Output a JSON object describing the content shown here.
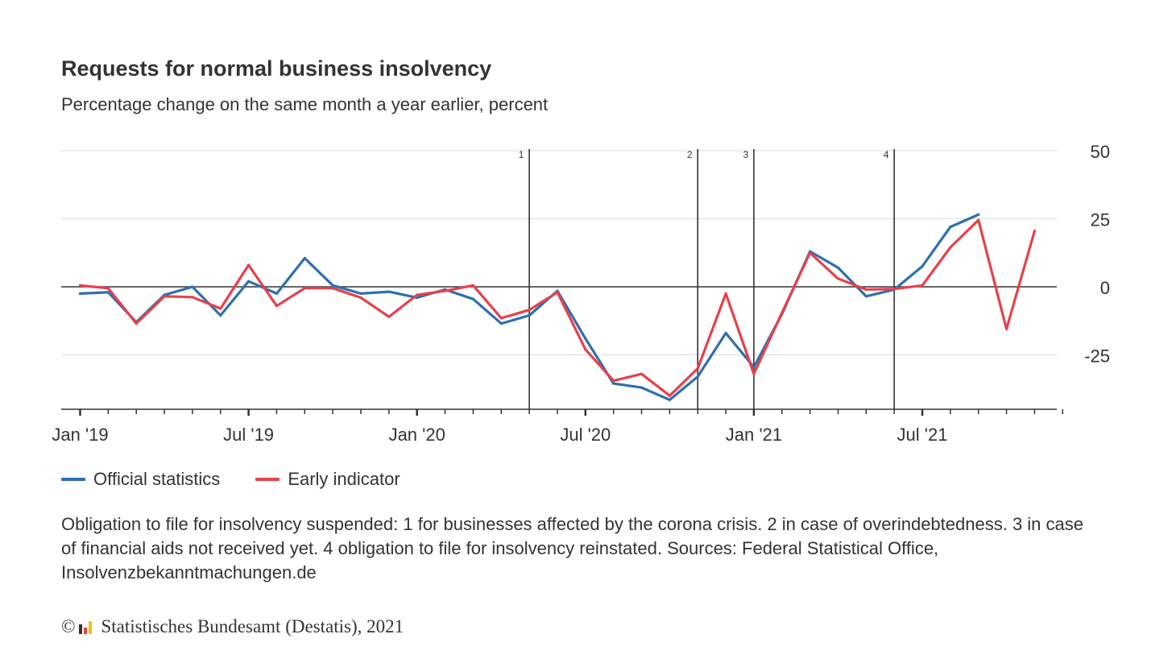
{
  "chart_data": {
    "type": "line",
    "title": "Requests for normal business insolvency",
    "subtitle": "Percentage change on the same month a year earlier, percent",
    "x": [
      "Jan '19",
      "Feb '19",
      "Mar '19",
      "Apr '19",
      "May '19",
      "Jun '19",
      "Jul '19",
      "Aug '19",
      "Sep '19",
      "Oct '19",
      "Nov '19",
      "Dec '19",
      "Jan '20",
      "Feb '20",
      "Mar '20",
      "Apr '20",
      "May '20",
      "Jun '20",
      "Jul '20",
      "Aug '20",
      "Sep '20",
      "Oct '20",
      "Nov '20",
      "Dec '20",
      "Jan '21",
      "Feb '21",
      "Mar '21",
      "Apr '21",
      "May '21",
      "Jun '21",
      "Jul '21",
      "Aug '21",
      "Sep '21",
      "Oct '21",
      "Nov '21",
      "Dec '21"
    ],
    "x_tick_labels": [
      "Jan '19",
      "Jul '19",
      "Jan '20",
      "Jul '20",
      "Jan '21",
      "Jul '21"
    ],
    "y_ticks": [
      50,
      25,
      0,
      -25
    ],
    "y_tick_labels": [
      "50",
      "25",
      "0",
      "-25"
    ],
    "ylim": [
      -45,
      50
    ],
    "grid": true,
    "y_axis_position": "right",
    "legend_position": "bottom-left",
    "series": [
      {
        "name": "Official statistics",
        "color": "#2f6fae",
        "values": [
          -2.5,
          -2,
          -13,
          -3,
          0,
          -10.5,
          2,
          -2.5,
          10.5,
          0.5,
          -2.5,
          -1.8,
          -4,
          -1,
          -4.5,
          -13.5,
          -10.5,
          -1.5,
          -19,
          -35.5,
          -37,
          -41.5,
          -33,
          -17,
          -29.5,
          -10,
          13,
          7,
          -3.5,
          -1,
          7.5,
          22,
          26.5,
          null,
          null,
          null
        ]
      },
      {
        "name": "Early indicator",
        "color": "#e8404a",
        "values": [
          0.5,
          -0.5,
          -13.5,
          -3.5,
          -3.8,
          -8,
          8,
          -7,
          -0.5,
          -0.5,
          -4,
          -11,
          -3,
          -1.5,
          0.5,
          -11.5,
          -8.5,
          -2,
          -23,
          -34.5,
          -32,
          -40,
          -30,
          -2.5,
          -32,
          -9.5,
          12.5,
          3,
          -1,
          -0.8,
          0.5,
          14.5,
          24.5,
          -15.5,
          20.5,
          null
        ]
      }
    ],
    "annotations": [
      {
        "label": "1",
        "x": "May '20"
      },
      {
        "label": "2",
        "x": "Nov '20"
      },
      {
        "label": "3",
        "x": "Jan '21"
      },
      {
        "label": "4",
        "x": "Jun '21"
      }
    ]
  },
  "footnote": "Obligation to file for insolvency suspended: 1 for businesses affected by the corona crisis. 2 in case of overindebtedness. 3 in case of financial aids not received yet. 4 obligation to file for insolvency reinstated. Sources: Federal Statistical Office, Insolvenzbekanntmachungen.de",
  "copyright": {
    "symbol": "©",
    "text": "Statistisches Bundesamt (Destatis), 2021",
    "logo_icon": "destatis-bars-icon",
    "logo_colors": [
      "#333333",
      "#e8404a",
      "#f2c200"
    ]
  }
}
